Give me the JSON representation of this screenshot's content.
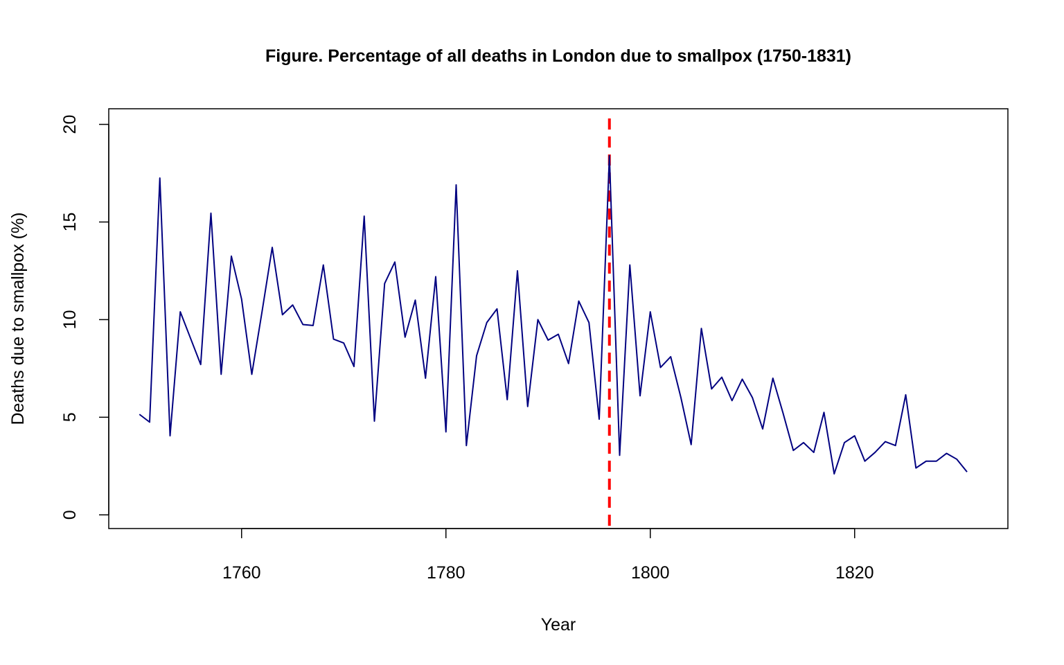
{
  "chart_data": {
    "type": "line",
    "title": "Figure. Percentage of all deaths in London due to smallpox (1750-1831)",
    "xlabel": "Year",
    "ylabel": "Deaths due to smallpox (%)",
    "xlim": [
      1747,
      1835
    ],
    "ylim": [
      -0.7,
      20.8
    ],
    "xticks": [
      1760,
      1780,
      1800,
      1820
    ],
    "yticks": [
      0,
      5,
      10,
      15,
      20
    ],
    "grid": false,
    "legend": "none",
    "line_color": "#000080",
    "reference_line": {
      "x": 1796,
      "color": "#ff0000",
      "style": "dashed"
    },
    "series": [
      {
        "x": [
          1750,
          1751,
          1752,
          1753,
          1754,
          1755,
          1756,
          1757,
          1758,
          1759,
          1760,
          1761,
          1762,
          1763,
          1764,
          1765,
          1766,
          1767,
          1768,
          1769,
          1770,
          1771,
          1772,
          1773,
          1774,
          1775,
          1776,
          1777,
          1778,
          1779,
          1780,
          1781,
          1782,
          1783,
          1784,
          1785,
          1786,
          1787,
          1788,
          1789,
          1790,
          1791,
          1792,
          1793,
          1794,
          1795,
          1796,
          1797,
          1798,
          1799,
          1800,
          1801,
          1802,
          1803,
          1804,
          1805,
          1806,
          1807,
          1808,
          1809,
          1810,
          1811,
          1812,
          1813,
          1814,
          1815,
          1816,
          1817,
          1818,
          1819,
          1820,
          1821,
          1822,
          1823,
          1824,
          1825,
          1826,
          1827,
          1828,
          1829,
          1830,
          1831
        ],
        "values": [
          5.15,
          4.75,
          17.25,
          4.05,
          10.4,
          9.05,
          7.7,
          15.45,
          7.2,
          13.25,
          11.05,
          7.2,
          10.4,
          13.7,
          10.25,
          10.75,
          9.75,
          9.7,
          12.8,
          9.0,
          8.8,
          7.6,
          15.3,
          4.8,
          11.85,
          12.95,
          9.1,
          11.0,
          7.0,
          12.2,
          4.25,
          16.9,
          3.55,
          8.15,
          9.85,
          10.55,
          5.9,
          12.5,
          5.55,
          10.0,
          8.95,
          9.25,
          7.75,
          10.95,
          9.85,
          4.9,
          18.4,
          3.05,
          12.8,
          6.1,
          10.4,
          7.55,
          8.1,
          6.0,
          3.6,
          9.55,
          6.45,
          7.05,
          5.85,
          6.95,
          6.0,
          4.4,
          7.0,
          5.2,
          3.3,
          3.7,
          3.2,
          5.25,
          2.1,
          3.7,
          4.05,
          2.75,
          3.2,
          3.75,
          3.55,
          6.15,
          2.4,
          2.75,
          2.75,
          3.15,
          2.85,
          2.2
        ]
      }
    ]
  }
}
